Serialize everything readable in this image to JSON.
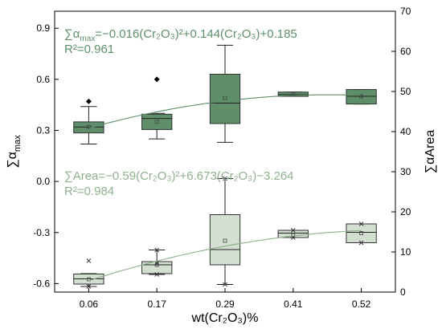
{
  "chart_data": {
    "type": "box",
    "categories": [
      "0.06",
      "0.17",
      "0.29",
      "0.41",
      "0.52"
    ],
    "x_values": [
      0.06,
      0.17,
      0.29,
      0.41,
      0.52
    ],
    "xlabel": "wt(Cr₂O₃)%",
    "ylabel_left": "∑α",
    "ylabel_left_sub": "max",
    "ylabel_right": "∑αArea",
    "ylim_left": [
      -0.65,
      1.0
    ],
    "ylim_right": [
      0,
      70
    ],
    "yticks_left": [
      "0.9",
      "0.6",
      "0.3",
      "0.0",
      "-0.3",
      "-0.6"
    ],
    "yticks_left_values": [
      0.9,
      0.6,
      0.3,
      0.0,
      -0.3,
      -0.6
    ],
    "yticks_right": [
      "70",
      "60",
      "50",
      "40",
      "30",
      "20",
      "10",
      "0"
    ],
    "yticks_right_values": [
      70,
      60,
      50,
      40,
      30,
      20,
      10,
      0
    ],
    "grid": false,
    "series": [
      {
        "axis": "left",
        "color": "#5e8f6a",
        "boxes": [
          {
            "whisker_low": 0.22,
            "q1": 0.285,
            "median": 0.32,
            "mean": 0.32,
            "q3": 0.35,
            "whisker_high": 0.44,
            "outliers": [
              0.47
            ]
          },
          {
            "whisker_low": 0.25,
            "q1": 0.305,
            "median": 0.37,
            "mean": 0.35,
            "q3": 0.395,
            "whisker_high": 0.4,
            "outliers": [
              0.6
            ]
          },
          {
            "whisker_low": 0.23,
            "q1": 0.34,
            "median": 0.46,
            "mean": 0.49,
            "q3": 0.63,
            "whisker_high": 0.8,
            "outliers": []
          },
          {
            "whisker_low": 0.5,
            "q1": 0.5,
            "median": 0.51,
            "mean": 0.51,
            "q3": 0.525,
            "whisker_high": 0.525,
            "outliers": []
          },
          {
            "whisker_low": 0.455,
            "q1": 0.455,
            "median": 0.5,
            "mean": 0.5,
            "q3": 0.54,
            "whisker_high": 0.54,
            "outliers": []
          }
        ],
        "fit": {
          "a": -0.016,
          "b": 0.144,
          "c": 0.185,
          "x_from": 0.06,
          "x_to": 0.52
        },
        "equation": "∑α",
        "equation_sub": "max",
        "equation_rest": "=−0.016(Cr₂O₃)²+0.144(Cr₂O₃)+0.185",
        "r2": "R²=0.961"
      },
      {
        "axis": "right",
        "color": "#8fb08d",
        "boxes": [
          {
            "whisker_low": 1.4,
            "q1": 2.0,
            "median": 3.3,
            "mean": 3.2,
            "q3": 4.5,
            "whisker_high": 4.6,
            "outliers": [
              1.4,
              7.8
            ]
          },
          {
            "whisker_low": 4.4,
            "q1": 4.6,
            "median": 6.8,
            "mean": 6.8,
            "q3": 7.6,
            "whisker_high": 10.5,
            "outliers": [
              4.4,
              7.2,
              10.5
            ]
          },
          {
            "whisker_low": 1.9,
            "q1": 6.8,
            "median": 10.6,
            "mean": 12.8,
            "q3": 19.3,
            "whisker_high": 28.3,
            "outliers": [
              1.9,
              28.3
            ]
          },
          {
            "whisker_low": 13.6,
            "q1": 13.6,
            "median": 14.7,
            "mean": 14.2,
            "q3": 15.4,
            "whisker_high": 15.4,
            "outliers": [
              13.6,
              15.4
            ]
          },
          {
            "whisker_low": 12.3,
            "q1": 12.3,
            "median": 14.9,
            "mean": 14.7,
            "q3": 17.0,
            "whisker_high": 17.0,
            "outliers": [
              12.3,
              17.0
            ]
          }
        ],
        "fit": {
          "a": -0.59,
          "b": 6.673,
          "c": -3.264,
          "x_from": 0.06,
          "x_to": 0.52
        },
        "equation": "∑Area=−0.59(Cr₂O₃)²+6.673(Cr₂O₃)−3.264",
        "r2": "R²=0.984"
      }
    ]
  }
}
